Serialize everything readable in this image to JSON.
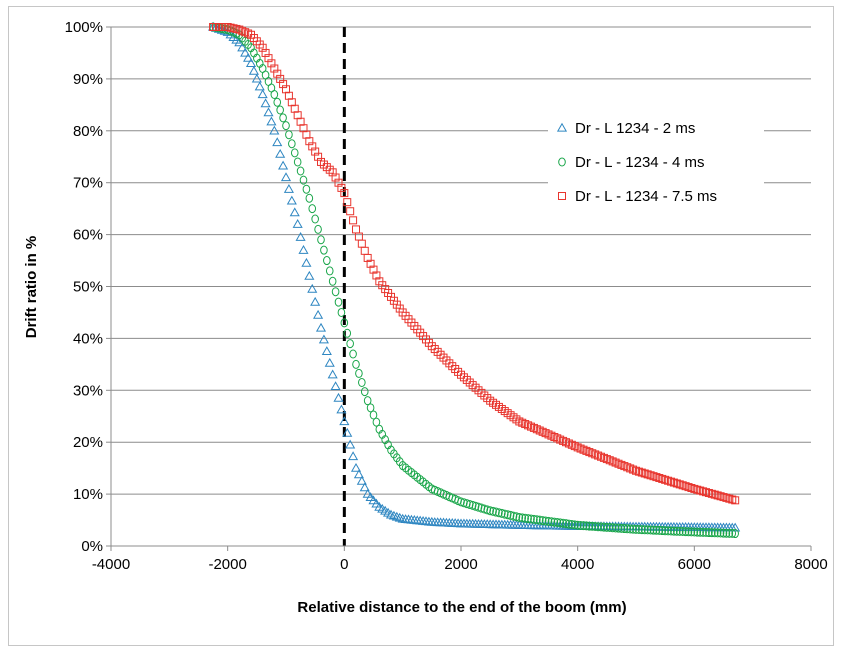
{
  "chart_data": {
    "type": "scatter",
    "title": "",
    "xlabel": "Relative distance to the end of the boom (mm)",
    "ylabel": "Drift ratio in %",
    "xlim": [
      -4000,
      8000
    ],
    "ylim": [
      0,
      100
    ],
    "x_ticks": [
      -4000,
      -2000,
      0,
      2000,
      4000,
      6000,
      8000
    ],
    "x_tick_labels": [
      "-4000",
      "-2000",
      "0",
      "2000",
      "4000",
      "6000",
      "8000"
    ],
    "y_ticks": [
      0,
      10,
      20,
      30,
      40,
      50,
      60,
      70,
      80,
      90,
      100
    ],
    "y_tick_labels": [
      "0%",
      "10%",
      "20%",
      "30%",
      "40%",
      "50%",
      "60%",
      "70%",
      "80%",
      "90%",
      "100%"
    ],
    "grid": "horizontal",
    "legend_position": "right",
    "vertical_reference_line": {
      "x": 0,
      "style": "dashed",
      "color": "#000000"
    },
    "x_range": [
      -2250,
      6700
    ],
    "x_step": 50,
    "series": [
      {
        "name": "Dr - L 1234 - 2 ms",
        "marker": "triangle",
        "color": "#2e86c1",
        "points": [
          [
            -2250,
            100
          ],
          [
            -2000,
            99
          ],
          [
            -1800,
            97
          ],
          [
            -1600,
            93
          ],
          [
            -1400,
            87
          ],
          [
            -1200,
            80
          ],
          [
            -1000,
            71
          ],
          [
            -800,
            62
          ],
          [
            -600,
            52
          ],
          [
            -400,
            42
          ],
          [
            -200,
            33
          ],
          [
            0,
            24
          ],
          [
            200,
            15
          ],
          [
            400,
            10
          ],
          [
            600,
            7.5
          ],
          [
            800,
            6
          ],
          [
            1000,
            5.2
          ],
          [
            1500,
            4.6
          ],
          [
            2000,
            4.3
          ],
          [
            3000,
            4
          ],
          [
            4000,
            3.8
          ],
          [
            5000,
            3.7
          ],
          [
            6000,
            3.6
          ],
          [
            6700,
            3.5
          ]
        ]
      },
      {
        "name": "Dr - L - 1234 - 4 ms",
        "marker": "circle",
        "color": "#1aa64a",
        "points": [
          [
            -2250,
            100
          ],
          [
            -2000,
            99.5
          ],
          [
            -1800,
            98.5
          ],
          [
            -1600,
            96
          ],
          [
            -1400,
            92
          ],
          [
            -1200,
            87
          ],
          [
            -1000,
            81
          ],
          [
            -800,
            74
          ],
          [
            -600,
            67
          ],
          [
            -400,
            59
          ],
          [
            -200,
            51
          ],
          [
            0,
            43
          ],
          [
            200,
            35
          ],
          [
            400,
            28
          ],
          [
            600,
            22.5
          ],
          [
            800,
            18.5
          ],
          [
            1000,
            15.5
          ],
          [
            1500,
            11
          ],
          [
            2000,
            8.5
          ],
          [
            2500,
            6.8
          ],
          [
            3000,
            5.5
          ],
          [
            4000,
            4
          ],
          [
            5000,
            3.2
          ],
          [
            6000,
            2.7
          ],
          [
            6700,
            2.4
          ]
        ]
      },
      {
        "name": "Dr - L - 1234 - 7.5 ms",
        "marker": "square",
        "color": "#e8352e",
        "points": [
          [
            -2250,
            100
          ],
          [
            -2000,
            100
          ],
          [
            -1800,
            99.5
          ],
          [
            -1600,
            98.5
          ],
          [
            -1400,
            96
          ],
          [
            -1200,
            92
          ],
          [
            -1000,
            88
          ],
          [
            -800,
            83
          ],
          [
            -600,
            78
          ],
          [
            -400,
            74
          ],
          [
            -200,
            72
          ],
          [
            0,
            68
          ],
          [
            200,
            61
          ],
          [
            400,
            55.5
          ],
          [
            600,
            51
          ],
          [
            1000,
            45
          ],
          [
            1500,
            38.5
          ],
          [
            2000,
            33
          ],
          [
            2500,
            28
          ],
          [
            3000,
            24
          ],
          [
            4000,
            19
          ],
          [
            5000,
            14.5
          ],
          [
            6000,
            11
          ],
          [
            6700,
            8.8
          ]
        ]
      }
    ]
  }
}
